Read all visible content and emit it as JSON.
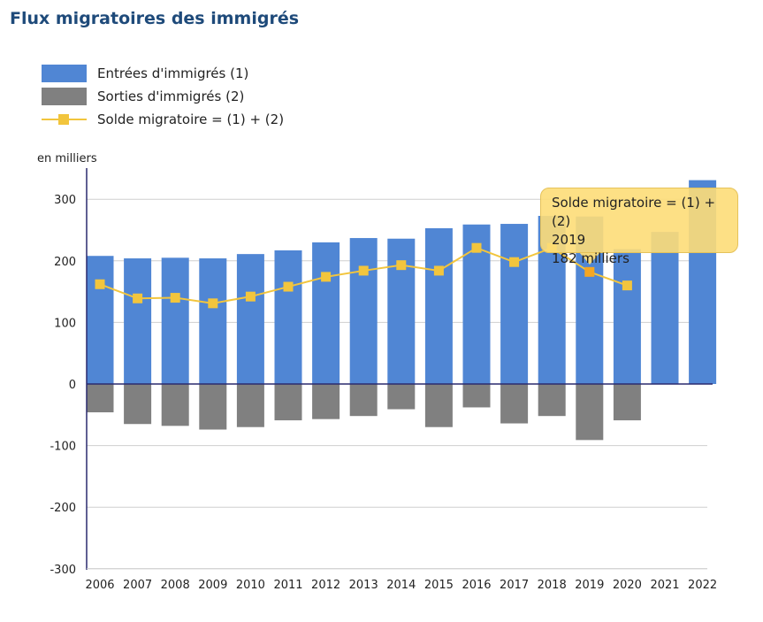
{
  "title": "Flux migratoires des immigrés",
  "unit_label": "en milliers",
  "legend": [
    {
      "label": "Entrées d'immigrés (1)",
      "color": "#5086d4",
      "kind": "bar"
    },
    {
      "label": "Sorties d'immigrés (2)",
      "color": "#808080",
      "kind": "bar"
    },
    {
      "label": "Solde migratoire = (1) + (2)",
      "color": "#f2c53d",
      "kind": "line"
    }
  ],
  "tooltip": {
    "series": "Solde migratoire = (1) + (2)",
    "year": "2019",
    "value": "182 milliers"
  },
  "chart_data": {
    "type": "bar",
    "categories": [
      "2006",
      "2007",
      "2008",
      "2009",
      "2010",
      "2011",
      "2012",
      "2013",
      "2014",
      "2015",
      "2016",
      "2017",
      "2018",
      "2019",
      "2020",
      "2021",
      "2022"
    ],
    "series": [
      {
        "name": "Entrées d'immigrés (1)",
        "type": "bar",
        "color": "#5086d4",
        "values": [
          208,
          204,
          205,
          204,
          211,
          217,
          230,
          237,
          236,
          253,
          259,
          260,
          273,
          272,
          219,
          247,
          331
        ]
      },
      {
        "name": "Sorties d'immigrés (2)",
        "type": "bar",
        "color": "#808080",
        "values": [
          -46,
          -65,
          -68,
          -74,
          -70,
          -59,
          -57,
          -52,
          -41,
          -70,
          -38,
          -64,
          -52,
          -91,
          -59,
          null,
          null
        ]
      },
      {
        "name": "Solde migratoire = (1) + (2)",
        "type": "line",
        "color": "#f2c53d",
        "values": [
          162,
          139,
          140,
          131,
          142,
          158,
          174,
          184,
          193,
          184,
          221,
          198,
          221,
          182,
          160,
          null,
          null
        ]
      }
    ],
    "yticks": [
      "300",
      "200",
      "100",
      "0",
      "-100",
      "-200",
      "-300"
    ],
    "ylim": [
      -300,
      340
    ],
    "grid": true,
    "legend_position": "top-left",
    "ylabel": "en milliers"
  }
}
